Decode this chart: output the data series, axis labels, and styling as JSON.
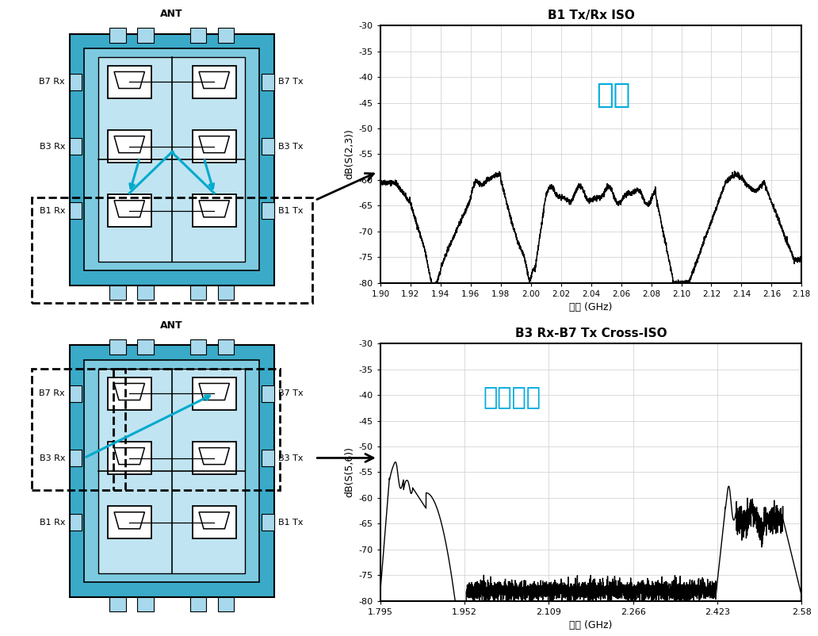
{
  "fig_width": 10.32,
  "fig_height": 8.02,
  "bg_color": "#ffffff",
  "plot1_title": "B1 Tx/Rx ISO",
  "plot1_ylabel": "dB(S(2,3))",
  "plot1_xlabel": "频率 (GHz)",
  "plot1_xlim": [
    1.9,
    2.18
  ],
  "plot1_ylim": [
    -80,
    -30
  ],
  "plot1_xticks": [
    1.9,
    1.92,
    1.94,
    1.96,
    1.98,
    2.0,
    2.02,
    2.04,
    2.06,
    2.08,
    2.1,
    2.12,
    2.14,
    2.16,
    2.18
  ],
  "plot1_yticks": [
    -80,
    -75,
    -70,
    -65,
    -60,
    -55,
    -50,
    -45,
    -40,
    -35,
    -30
  ],
  "plot1_annotation": "隔离",
  "plot2_title": "B3 Rx-B7 Tx Cross-ISO",
  "plot2_ylabel": "dB(S(5,6))",
  "plot2_xlabel": "频率 (GHz)",
  "plot2_xlim": [
    1.795,
    2.58
  ],
  "plot2_ylim": [
    -80,
    -30
  ],
  "plot2_xticks": [
    1.795,
    1.952,
    2.109,
    2.266,
    2.423,
    2.58
  ],
  "plot2_yticks": [
    -80,
    -75,
    -70,
    -65,
    -60,
    -55,
    -50,
    -45,
    -40,
    -35,
    -30
  ],
  "plot2_annotation": "交叉隔离",
  "color_outer_blue": "#3AAAC8",
  "color_inner_blue": "#7DCAE0",
  "color_center_light": "#C0E4F2",
  "color_pad": "#A8D8EC",
  "color_cyan_arrow": "#00AACC",
  "color_black_arrow": "#000000"
}
